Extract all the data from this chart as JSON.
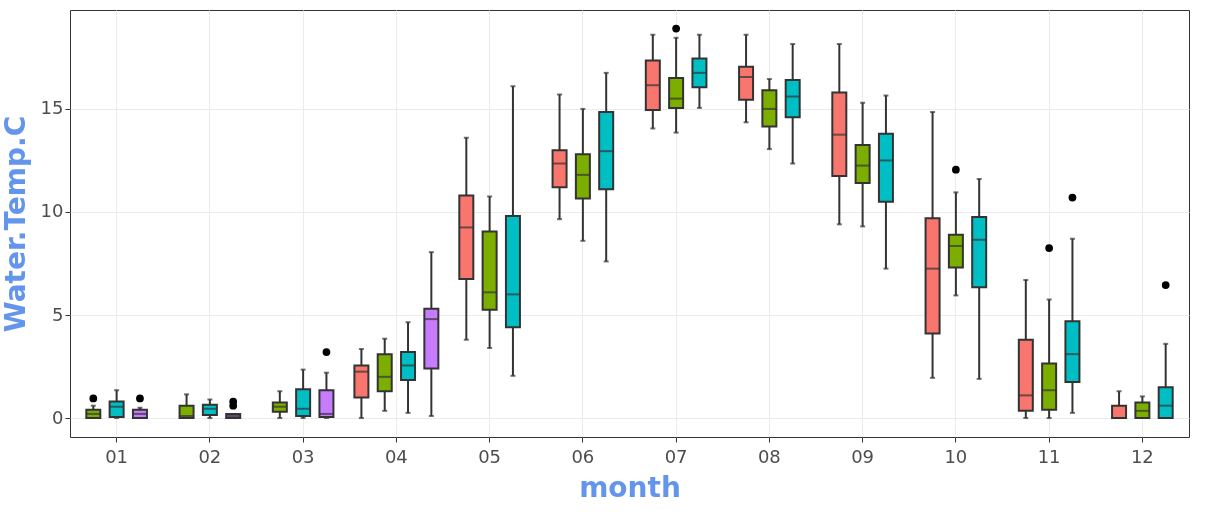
{
  "chart_data": {
    "type": "box",
    "xlabel": "month",
    "ylabel": "Water.Temp.C",
    "categories": [
      "01",
      "02",
      "03",
      "04",
      "05",
      "06",
      "07",
      "08",
      "09",
      "10",
      "11",
      "12"
    ],
    "ylim": [
      -0.92,
      19.8
    ],
    "yticks": [
      0,
      5,
      10,
      15
    ],
    "grid": true,
    "series": [
      {
        "color": "#f8766d",
        "boxes": [
          null,
          null,
          null,
          {
            "low": 0,
            "q1": 1.0,
            "median": 2.25,
            "q3": 2.55,
            "high": 3.35
          },
          {
            "low": 3.8,
            "q1": 6.75,
            "median": 9.25,
            "q3": 10.8,
            "high": 13.6
          },
          {
            "low": 9.65,
            "q1": 11.2,
            "median": 12.35,
            "q3": 13.0,
            "high": 15.7
          },
          {
            "low": 14.05,
            "q1": 14.95,
            "median": 16.15,
            "q3": 17.35,
            "high": 18.6
          },
          {
            "low": 14.35,
            "q1": 15.45,
            "median": 16.55,
            "q3": 17.05,
            "high": 18.6
          },
          {
            "low": 9.4,
            "q1": 11.75,
            "median": 13.75,
            "q3": 15.8,
            "high": 18.15
          },
          {
            "low": 1.95,
            "q1": 4.1,
            "median": 7.25,
            "q3": 9.7,
            "high": 14.85
          },
          {
            "low": 0,
            "q1": 0.35,
            "median": 1.1,
            "q3": 3.8,
            "high": 6.7
          },
          {
            "low": 0,
            "q1": 0,
            "median": 0,
            "q3": 0.6,
            "high": 1.3
          }
        ]
      },
      {
        "color": "#7cae00",
        "boxes": [
          {
            "low": 0,
            "q1": 0,
            "median": 0.2,
            "q3": 0.4,
            "high": 0.6,
            "outliers": [
              0.95
            ]
          },
          {
            "low": 0,
            "q1": 0,
            "median": 0.1,
            "q3": 0.6,
            "high": 1.15
          },
          {
            "low": 0,
            "q1": 0.3,
            "median": 0.55,
            "q3": 0.75,
            "high": 1.3
          },
          {
            "low": 0.35,
            "q1": 1.3,
            "median": 2.0,
            "q3": 3.1,
            "high": 3.85
          },
          {
            "low": 3.4,
            "q1": 5.25,
            "median": 6.1,
            "q3": 9.05,
            "high": 10.75
          },
          {
            "low": 8.6,
            "q1": 10.65,
            "median": 11.8,
            "q3": 12.8,
            "high": 15.0
          },
          {
            "low": 13.85,
            "q1": 15.05,
            "median": 15.5,
            "q3": 16.5,
            "high": 18.45,
            "outliers": [
              18.9
            ]
          },
          {
            "low": 13.05,
            "q1": 14.15,
            "median": 15.0,
            "q3": 15.9,
            "high": 16.45
          },
          {
            "low": 9.3,
            "q1": 11.4,
            "median": 12.25,
            "q3": 13.25,
            "high": 15.3
          },
          {
            "low": 5.95,
            "q1": 7.3,
            "median": 8.35,
            "q3": 8.9,
            "high": 10.95,
            "outliers": [
              12.05
            ]
          },
          {
            "low": 0,
            "q1": 0.4,
            "median": 1.35,
            "q3": 2.65,
            "high": 5.75,
            "outliers": [
              8.25
            ]
          },
          {
            "low": 0,
            "q1": 0,
            "median": 0.35,
            "q3": 0.75,
            "high": 1.05
          }
        ]
      },
      {
        "color": "#00bfc4",
        "boxes": [
          {
            "low": 0,
            "q1": 0.05,
            "median": 0.55,
            "q3": 0.8,
            "high": 1.35
          },
          {
            "low": 0,
            "q1": 0.15,
            "median": 0.45,
            "q3": 0.65,
            "high": 0.9
          },
          {
            "low": 0,
            "q1": 0.1,
            "median": 0.45,
            "q3": 1.4,
            "high": 2.35
          },
          {
            "low": 0.25,
            "q1": 1.85,
            "median": 2.55,
            "q3": 3.2,
            "high": 4.65
          },
          {
            "low": 2.05,
            "q1": 4.4,
            "median": 6.0,
            "q3": 9.8,
            "high": 16.1
          },
          {
            "low": 7.6,
            "q1": 11.1,
            "median": 12.95,
            "q3": 14.85,
            "high": 16.75
          },
          {
            "low": 15.05,
            "q1": 16.05,
            "median": 16.75,
            "q3": 17.45,
            "high": 18.6
          },
          {
            "low": 12.35,
            "q1": 14.6,
            "median": 15.6,
            "q3": 16.4,
            "high": 18.15
          },
          {
            "low": 7.25,
            "q1": 10.5,
            "median": 12.5,
            "q3": 13.8,
            "high": 15.65
          },
          {
            "low": 1.9,
            "q1": 6.35,
            "median": 8.65,
            "q3": 9.75,
            "high": 11.6
          },
          {
            "low": 0.25,
            "q1": 1.75,
            "median": 3.1,
            "q3": 4.7,
            "high": 8.7,
            "outliers": [
              10.7
            ]
          },
          {
            "low": 0,
            "q1": 0,
            "median": 0.6,
            "q3": 1.5,
            "high": 3.6,
            "outliers": [
              6.45
            ]
          }
        ]
      },
      {
        "color": "#c77cff",
        "boxes": [
          {
            "low": 0,
            "q1": 0,
            "median": 0.2,
            "q3": 0.4,
            "high": 0.5,
            "outliers": [
              0.95
            ]
          },
          {
            "low": 0,
            "q1": 0,
            "median": 0.1,
            "q3": 0.2,
            "high": 0.2,
            "outliers": [
              0.6,
              0.8
            ]
          },
          {
            "low": 0,
            "q1": 0.05,
            "median": 0.2,
            "q3": 1.35,
            "high": 2.2,
            "outliers": [
              3.2
            ]
          },
          {
            "low": 0.1,
            "q1": 2.4,
            "median": 4.8,
            "q3": 5.3,
            "high": 8.05
          },
          null,
          null,
          null,
          null,
          null,
          null,
          null,
          null
        ]
      }
    ]
  }
}
